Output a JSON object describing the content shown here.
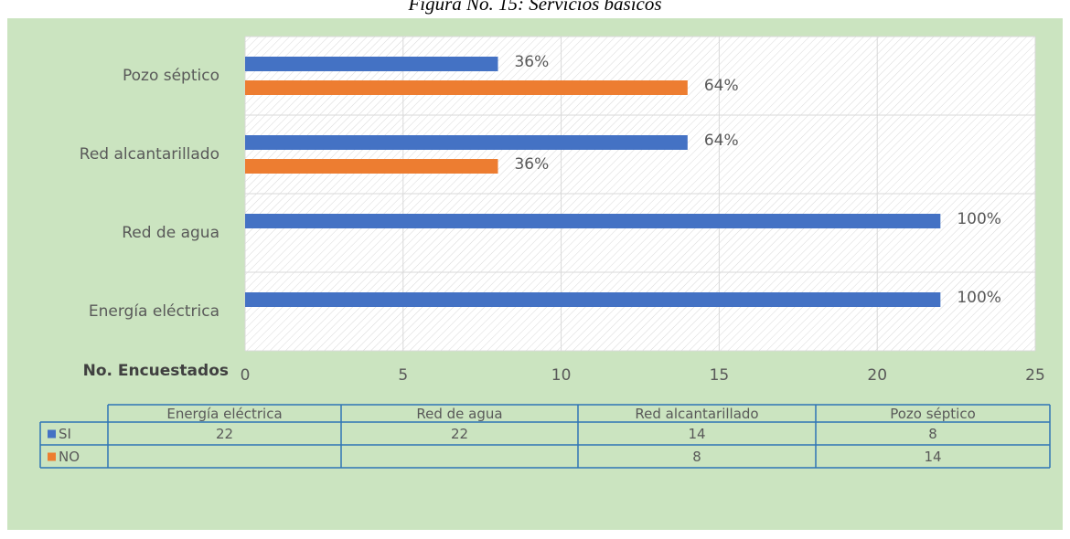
{
  "chart_data": {
    "type": "bar",
    "orientation": "horizontal",
    "title": "Figura No. 15: Servicios básicos",
    "x_label": "No. Encuestados",
    "categories": [
      "Energía eléctrica",
      "Red de agua",
      "Red alcantarillado",
      "Pozo séptico"
    ],
    "series": [
      {
        "name": "SI",
        "color": "#4472c4",
        "values": [
          22,
          22,
          14,
          8
        ],
        "value_labels": [
          "100%",
          "100%",
          "64%",
          "36%"
        ]
      },
      {
        "name": "NO",
        "color": "#ed7d31",
        "values": [
          null,
          null,
          8,
          14
        ],
        "value_labels": [
          null,
          null,
          "36%",
          "64%"
        ]
      }
    ],
    "xlim": [
      0,
      25
    ],
    "xticks": [
      0,
      5,
      10,
      15,
      20,
      25
    ],
    "grid": true,
    "data_table": true
  }
}
